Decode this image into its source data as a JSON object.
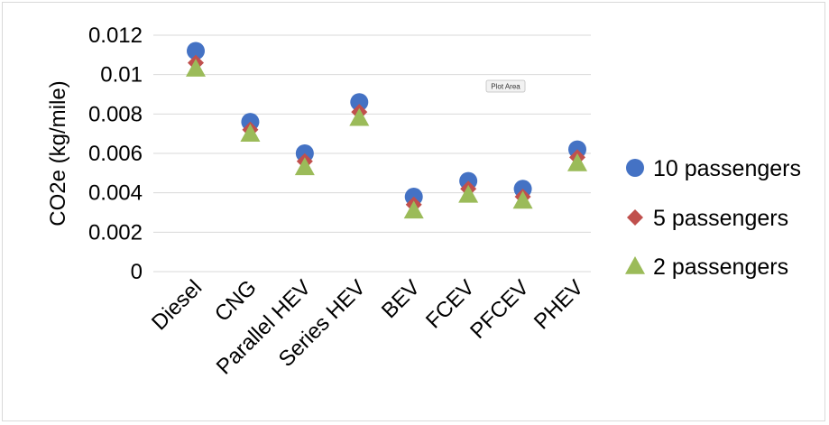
{
  "chart_data": {
    "type": "scatter",
    "categories": [
      "Diesel",
      "CNG",
      "Parallel HEV",
      "Series HEV",
      "BEV",
      "FCEV",
      "PFCEV",
      "PHEV"
    ],
    "series": [
      {
        "name": "10 passengers",
        "marker": "circle",
        "color": "#4472c4",
        "values": [
          0.0112,
          0.0076,
          0.006,
          0.0086,
          0.0038,
          0.0046,
          0.0042,
          0.0062
        ]
      },
      {
        "name": "5 passengers",
        "marker": "diamond",
        "color": "#c0504d",
        "values": [
          0.0106,
          0.0072,
          0.0056,
          0.0081,
          0.0034,
          0.0042,
          0.0038,
          0.0058
        ]
      },
      {
        "name": "2 passengers",
        "marker": "triangle",
        "color": "#9bbb59",
        "values": [
          0.0103,
          0.007,
          0.0053,
          0.0078,
          0.0031,
          0.0039,
          0.0036,
          0.0055
        ]
      }
    ],
    "ylabel": "CO2e (kg/mile)",
    "xlabel": "",
    "ylim": [
      0,
      0.012
    ],
    "yticks": [
      "0",
      "0.002",
      "0.004",
      "0.006",
      "0.008",
      "0.01",
      "0.012"
    ],
    "grid": true,
    "legend_position": "right",
    "tooltip": "Plot Area"
  }
}
